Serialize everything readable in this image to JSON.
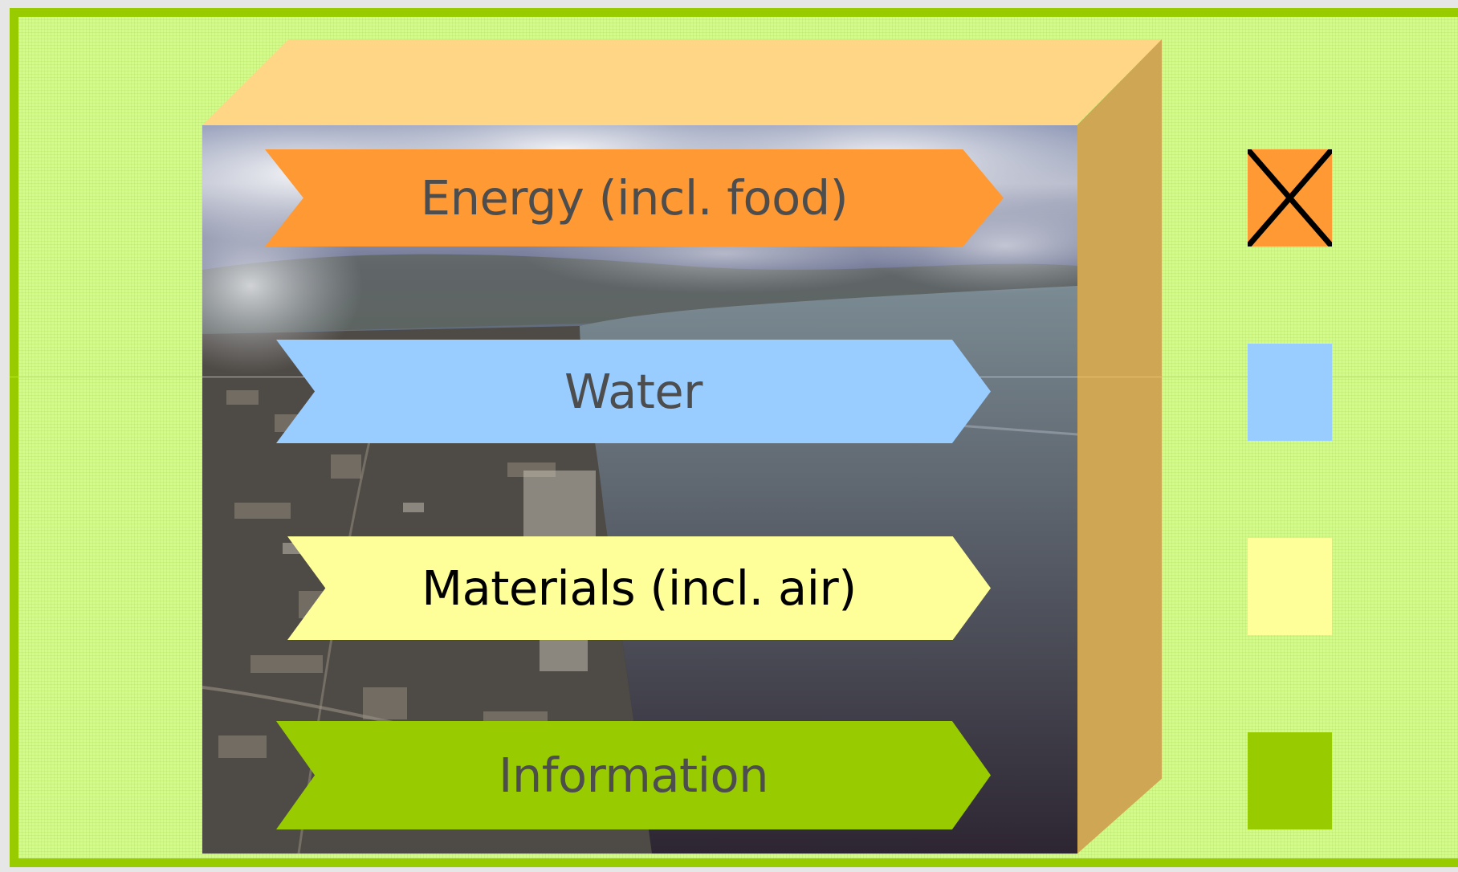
{
  "flows": [
    {
      "label": "Energy (incl. food)",
      "color": "#ff9933",
      "text_color": "#4d4d4d",
      "crossed": true
    },
    {
      "label": "Water",
      "color": "#99ccff",
      "text_color": "#4d4d4d",
      "crossed": false
    },
    {
      "label": "Materials (incl. air)",
      "color": "#ffff99",
      "text_color": "#000000",
      "crossed": false
    },
    {
      "label": "Information",
      "color": "#99cc00",
      "text_color": "#4d4d4d",
      "crossed": false
    }
  ],
  "colors": {
    "slide_background": "#d3fa8c",
    "slide_border": "#99cc00",
    "box_top": "#ffd685",
    "box_side": "#cfa653"
  },
  "icons": {
    "photo": "aerial-city-river-photo",
    "cross": "close-icon"
  }
}
